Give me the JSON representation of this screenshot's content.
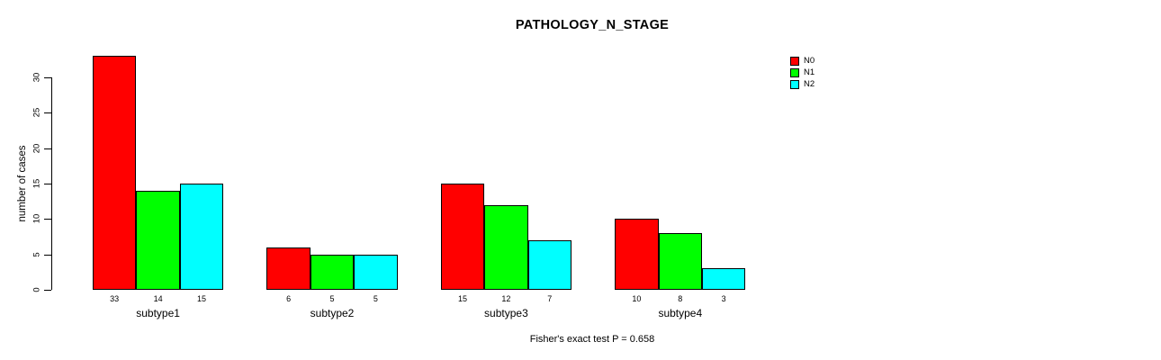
{
  "chart_data": {
    "type": "bar",
    "title": "PATHOLOGY_N_STAGE",
    "xlabel": "",
    "ylabel": "number of cases",
    "categories": [
      "subtype1",
      "subtype2",
      "subtype3",
      "subtype4"
    ],
    "series": [
      {
        "name": "N0",
        "color": "#ff0000",
        "values": [
          33,
          6,
          15,
          10
        ]
      },
      {
        "name": "N1",
        "color": "#00ff00",
        "values": [
          14,
          5,
          12,
          8
        ]
      },
      {
        "name": "N2",
        "color": "#00ffff",
        "values": [
          15,
          5,
          7,
          3
        ]
      }
    ],
    "bar_value_labels": [
      [
        "33",
        "14",
        "15"
      ],
      [
        "6",
        "5",
        "5"
      ],
      [
        "15",
        "12",
        "7"
      ],
      [
        "10",
        "8",
        "3"
      ]
    ],
    "yticks": [
      0,
      5,
      10,
      15,
      20,
      25,
      30
    ],
    "ylim": [
      0,
      33
    ],
    "grid": false,
    "legend_position": "top-right",
    "annotation": "Fisher's exact test P = 0.658"
  }
}
